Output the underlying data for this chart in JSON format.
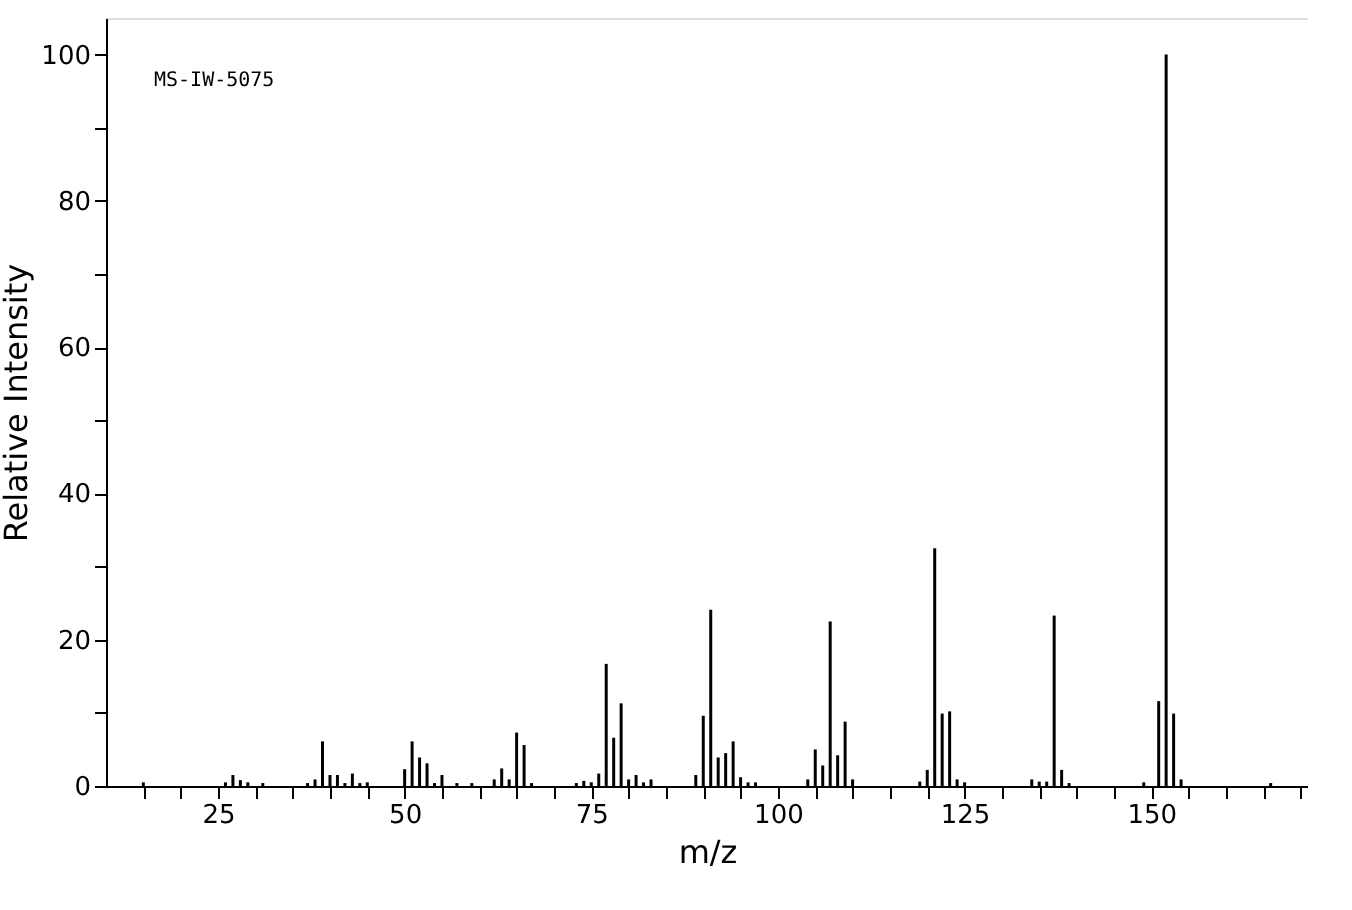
{
  "chart_data": {
    "type": "bar",
    "xlabel": "m/z",
    "ylabel": "Relative Intensity",
    "annotations": [
      "MS-IW-5075"
    ],
    "x": [
      15,
      26,
      27,
      28,
      29,
      31,
      37,
      38,
      39,
      40,
      41,
      42,
      43,
      44,
      45,
      50,
      51,
      52,
      53,
      54,
      55,
      57,
      59,
      62,
      63,
      64,
      65,
      66,
      67,
      73,
      74,
      75,
      76,
      77,
      78,
      79,
      80,
      81,
      82,
      83,
      89,
      90,
      91,
      92,
      93,
      94,
      95,
      96,
      97,
      104,
      105,
      106,
      107,
      108,
      109,
      110,
      119,
      120,
      121,
      122,
      123,
      124,
      125,
      134,
      135,
      136,
      137,
      138,
      139,
      149,
      151,
      152,
      153,
      154,
      166
    ],
    "values": [
      0.5,
      0.5,
      1.5,
      0.8,
      0.5,
      0.4,
      0.4,
      0.9,
      6.1,
      1.5,
      1.5,
      0.4,
      1.7,
      0.4,
      0.5,
      2.3,
      6.1,
      3.9,
      3.1,
      0.4,
      1.5,
      0.4,
      0.4,
      0.9,
      2.4,
      0.9,
      7.3,
      5.6,
      0.4,
      0.4,
      0.7,
      0.5,
      1.7,
      16.7,
      6.6,
      11.3,
      0.9,
      1.5,
      0.5,
      0.9,
      1.5,
      9.6,
      24.1,
      3.9,
      4.5,
      6.1,
      1.2,
      0.5,
      0.5,
      0.9,
      5.0,
      2.8,
      22.5,
      4.2,
      8.8,
      0.9,
      0.6,
      2.2,
      32.5,
      9.9,
      10.2,
      0.9,
      0.5,
      0.9,
      0.6,
      0.6,
      23.3,
      2.2,
      0.4,
      0.5,
      11.6,
      100,
      9.9,
      0.9,
      0.4
    ],
    "color": "#000000",
    "xlim": [
      10,
      171
    ],
    "ylim": [
      0,
      105
    ],
    "xticks": [
      {
        "value": 15,
        "label": null
      },
      {
        "value": 20,
        "label": null
      },
      25,
      {
        "value": 30,
        "label": null
      },
      {
        "value": 35,
        "label": null
      },
      {
        "value": 40,
        "label": null
      },
      {
        "value": 45,
        "label": null
      },
      50,
      {
        "value": 55,
        "label": null
      },
      {
        "value": 60,
        "label": null
      },
      {
        "value": 65,
        "label": null
      },
      {
        "value": 70,
        "label": null
      },
      75,
      {
        "value": 80,
        "label": null
      },
      {
        "value": 85,
        "label": null
      },
      {
        "value": 90,
        "label": null
      },
      {
        "value": 95,
        "label": null
      },
      100,
      {
        "value": 105,
        "label": null
      },
      {
        "value": 110,
        "label": null
      },
      {
        "value": 115,
        "label": null
      },
      {
        "value": 120,
        "label": null
      },
      125,
      {
        "value": 130,
        "label": null
      },
      {
        "value": 135,
        "label": null
      },
      {
        "value": 140,
        "label": null
      },
      {
        "value": 145,
        "label": null
      },
      150,
      {
        "value": 155,
        "label": null
      },
      {
        "value": 160,
        "label": null
      },
      {
        "value": 165,
        "label": null
      },
      {
        "value": 170,
        "label": null
      }
    ],
    "yticks": [
      0,
      {
        "value": 10,
        "label": null
      },
      20,
      {
        "value": 30,
        "label": null
      },
      40,
      {
        "value": 50,
        "label": null
      },
      60,
      {
        "value": 70,
        "label": null
      },
      80,
      {
        "value": 90,
        "label": null
      },
      100
    ],
    "grid": false
  }
}
